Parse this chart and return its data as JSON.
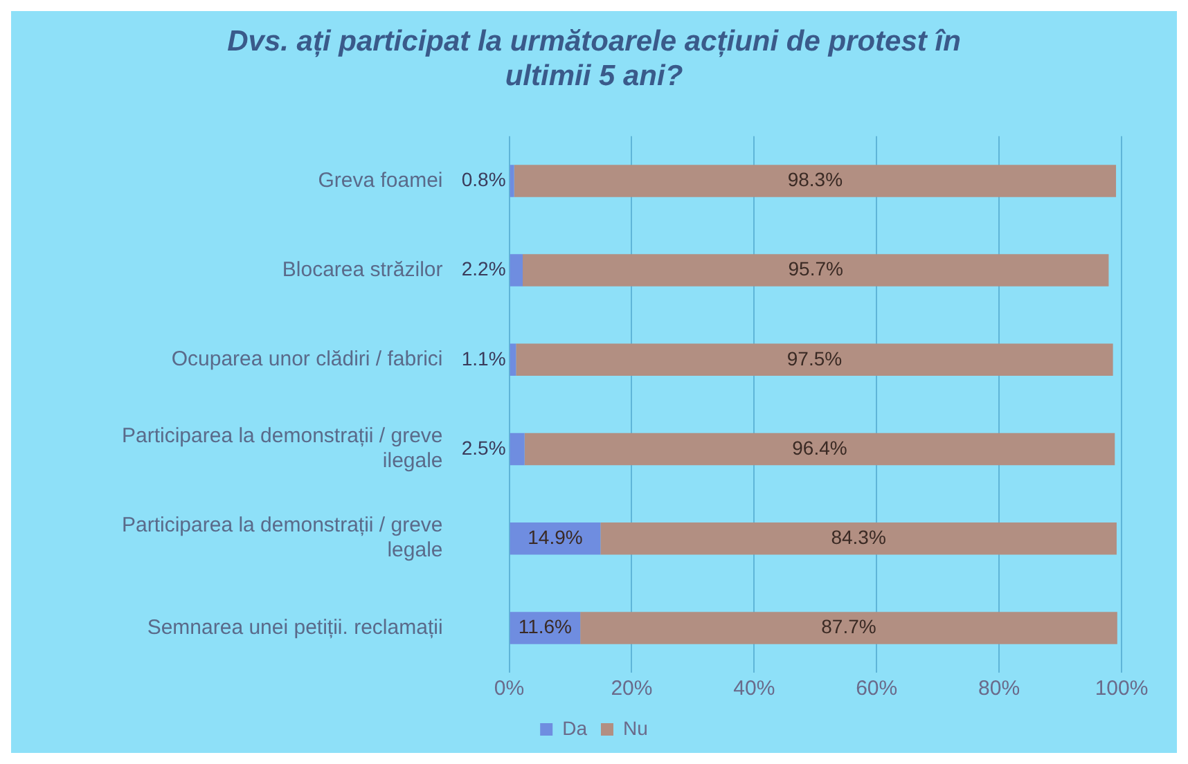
{
  "chart_data": {
    "type": "bar",
    "orientation": "horizontal",
    "stacked": true,
    "title": "Dvs. ați participat la următoarele acțiuni de protest în ultimii 5 ani?",
    "categories": [
      "Greva foamei",
      "Blocarea străzilor",
      "Ocuparea unor clădiri / fabrici",
      "Participarea la demonstrații / greve ilegale",
      "Participarea la demonstrații / greve legale",
      "Semnarea unei petiții. reclamații"
    ],
    "series": [
      {
        "name": "Da",
        "color": "#6f8de0",
        "values": [
          0.8,
          2.2,
          1.1,
          2.5,
          14.9,
          11.6
        ],
        "value_labels": [
          "0.8%",
          "2.2%",
          "1.1%",
          "2.5%",
          "14.9%",
          "11.6%"
        ]
      },
      {
        "name": "Nu",
        "color": "#b28f82",
        "values": [
          98.3,
          95.7,
          97.5,
          96.4,
          84.3,
          87.7
        ],
        "value_labels": [
          "98.3%",
          "95.7%",
          "97.5%",
          "96.4%",
          "84.3%",
          "87.7%"
        ]
      }
    ],
    "xlim": [
      0,
      100
    ],
    "xticks": [
      {
        "value": 0,
        "label": "0%"
      },
      {
        "value": 20,
        "label": "20%"
      },
      {
        "value": 40,
        "label": "40%"
      },
      {
        "value": 60,
        "label": "60%"
      },
      {
        "value": 80,
        "label": "80%"
      },
      {
        "value": 100,
        "label": "100%"
      }
    ],
    "grid": "x",
    "legend": "bottom"
  }
}
